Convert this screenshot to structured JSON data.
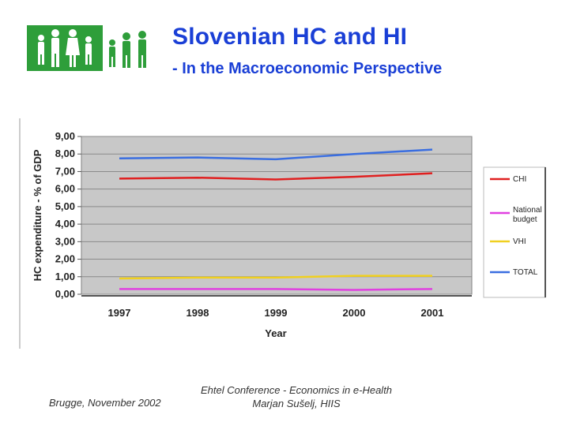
{
  "header": {
    "title": "Slovenian HC and HI",
    "subtitle": "- In the Macroeconomic Perspective"
  },
  "logo": {
    "icon": "family-figures-logo",
    "color": "#2e9e3a"
  },
  "footer": {
    "left": "Brugge, November 2002",
    "line1": "Ehtel Conference - Economics in e-Health",
    "line2": "Marjan Sušelj, HIIS"
  },
  "chart_data": {
    "type": "line",
    "xlabel": "Year",
    "ylabel": "HC expenditure - % of GDP",
    "categories": [
      "1997",
      "1998",
      "1999",
      "2000",
      "2001"
    ],
    "ylim": [
      0,
      9
    ],
    "yticks": [
      "0,00",
      "1,00",
      "2,00",
      "3,00",
      "4,00",
      "5,00",
      "6,00",
      "7,00",
      "8,00",
      "9,00"
    ],
    "grid": true,
    "legend": "right",
    "series": [
      {
        "name": "CHI",
        "values": [
          6.6,
          6.65,
          6.55,
          6.7,
          6.9
        ],
        "color": "#e02020"
      },
      {
        "name": "National budget",
        "values": [
          0.3,
          0.3,
          0.3,
          0.25,
          0.3
        ],
        "color": "#e040e0"
      },
      {
        "name": "VHI",
        "values": [
          0.9,
          0.95,
          0.95,
          1.05,
          1.05
        ],
        "color": "#f0d020"
      },
      {
        "name": "TOTAL",
        "values": [
          7.75,
          7.8,
          7.7,
          8.0,
          8.25
        ],
        "color": "#3a6ee0"
      }
    ]
  }
}
